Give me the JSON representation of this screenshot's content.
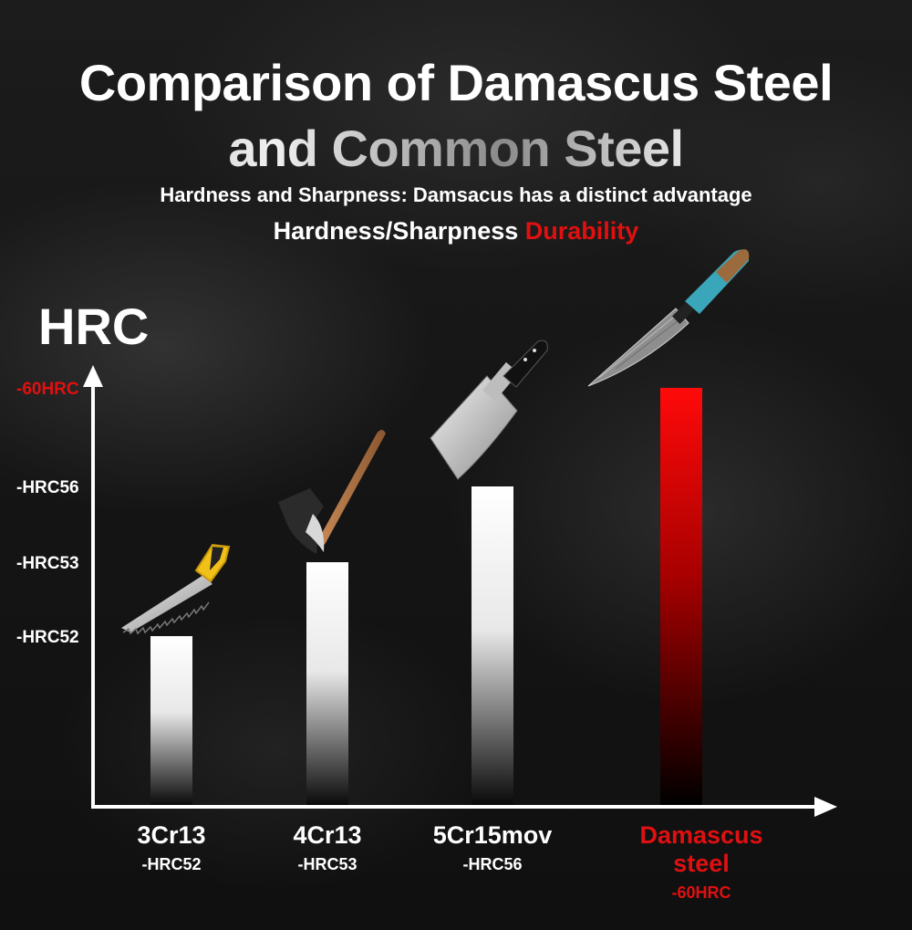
{
  "header": {
    "title_line1": "Comparison of Damascus Steel",
    "title_line2": "and Common Steel",
    "subtitle": "Hardness and Sharpness: Damsacus has a distinct advantage",
    "tagline_white": "Hardness/Sharpness",
    "tagline_red": "Durability"
  },
  "colors": {
    "highlight": "#e01010",
    "text": "#ffffff",
    "axis": "#ffffff"
  },
  "chart_data": {
    "type": "bar",
    "ylabel": "HRC",
    "yticks": [
      {
        "value": 52,
        "label": "-HRC52"
      },
      {
        "value": 53,
        "label": "-HRC53"
      },
      {
        "value": 56,
        "label": "-HRC56"
      },
      {
        "value": 60,
        "label": "-60HRC",
        "highlight": true
      }
    ],
    "categories": [
      "3Cr13",
      "4Cr13",
      "5Cr15mov",
      "Damascus steel"
    ],
    "value_labels": [
      "-HRC52",
      "-HRC53",
      "-HRC56",
      "-60HRC"
    ],
    "values": [
      52,
      53,
      56,
      60
    ],
    "highlight_index": 3,
    "illustrations": [
      "hand-saw",
      "axe",
      "cleaver",
      "damascus-chef-knife"
    ]
  }
}
